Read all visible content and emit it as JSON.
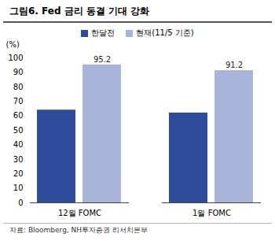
{
  "chart_data": {
    "type": "bar",
    "title": "그림6. Fed 금리 동결 기대 강화",
    "y_label": "(%)",
    "categories": [
      "12월 FOMC",
      "1월 FOMC"
    ],
    "series": [
      {
        "name": "한달전",
        "color": "#2f4b9b",
        "values": [
          64,
          62
        ]
      },
      {
        "name": "현재(11/5 기준)",
        "color": "#a8b5d8",
        "values": [
          95.2,
          91.2
        ],
        "data_labels": true
      }
    ],
    "ylim": [
      0,
      100
    ],
    "yticks": [
      0,
      10,
      20,
      30,
      40,
      50,
      60,
      70,
      80,
      90,
      100
    ],
    "grid": false,
    "legend": "top",
    "caption": "자료: Bloomberg, NH투자증권 리서치본부"
  }
}
